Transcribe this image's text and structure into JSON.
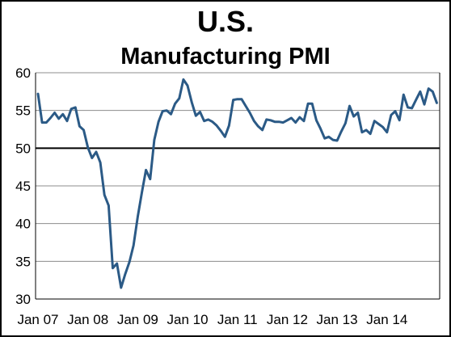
{
  "chart_data": {
    "type": "line",
    "title": "U.S.",
    "subtitle": "Manufacturing PMI",
    "xlabel": "",
    "ylabel": "",
    "ylim": [
      30,
      60
    ],
    "yticks": [
      30,
      35,
      40,
      45,
      50,
      55,
      60
    ],
    "xlim": [
      "2007-01",
      "2014-12"
    ],
    "xticks": [
      "Jan 07",
      "Jan 08",
      "Jan 09",
      "Jan 10",
      "Jan 11",
      "Jan 12",
      "Jan 13",
      "Jan 14"
    ],
    "grid": "horizontal",
    "reference_line": 50,
    "series": [
      {
        "color": "#2b5a86",
        "start": "2007-01",
        "values": [
          57.2,
          53.4,
          53.4,
          54.0,
          54.7,
          53.9,
          54.5,
          53.6,
          55.2,
          55.4,
          52.9,
          52.4,
          50.1,
          48.7,
          49.5,
          48.1,
          43.8,
          42.4,
          34.1,
          34.7,
          31.5,
          33.3,
          34.9,
          37.1,
          40.9,
          44.1,
          47.1,
          45.9,
          51.1,
          53.5,
          54.9,
          55.0,
          54.5,
          55.9,
          56.6,
          59.1,
          58.3,
          56.1,
          54.3,
          54.8,
          53.6,
          53.8,
          53.5,
          53.0,
          52.3,
          51.5,
          53.0,
          56.4,
          56.5,
          56.5,
          55.6,
          54.7,
          53.6,
          52.9,
          52.4,
          53.8,
          53.7,
          53.5,
          53.5,
          53.4,
          53.7,
          54.0,
          53.4,
          54.1,
          53.6,
          55.9,
          55.9,
          53.7,
          52.6,
          51.3,
          51.5,
          51.1,
          51.0,
          52.2,
          53.3,
          55.6,
          54.2,
          54.7,
          52.1,
          52.4,
          51.9,
          53.6,
          53.2,
          52.8,
          52.1,
          54.4,
          54.9,
          53.7,
          57.1,
          55.4,
          55.3,
          56.4,
          57.5,
          55.8,
          57.9,
          57.5,
          56.0
        ]
      }
    ]
  }
}
